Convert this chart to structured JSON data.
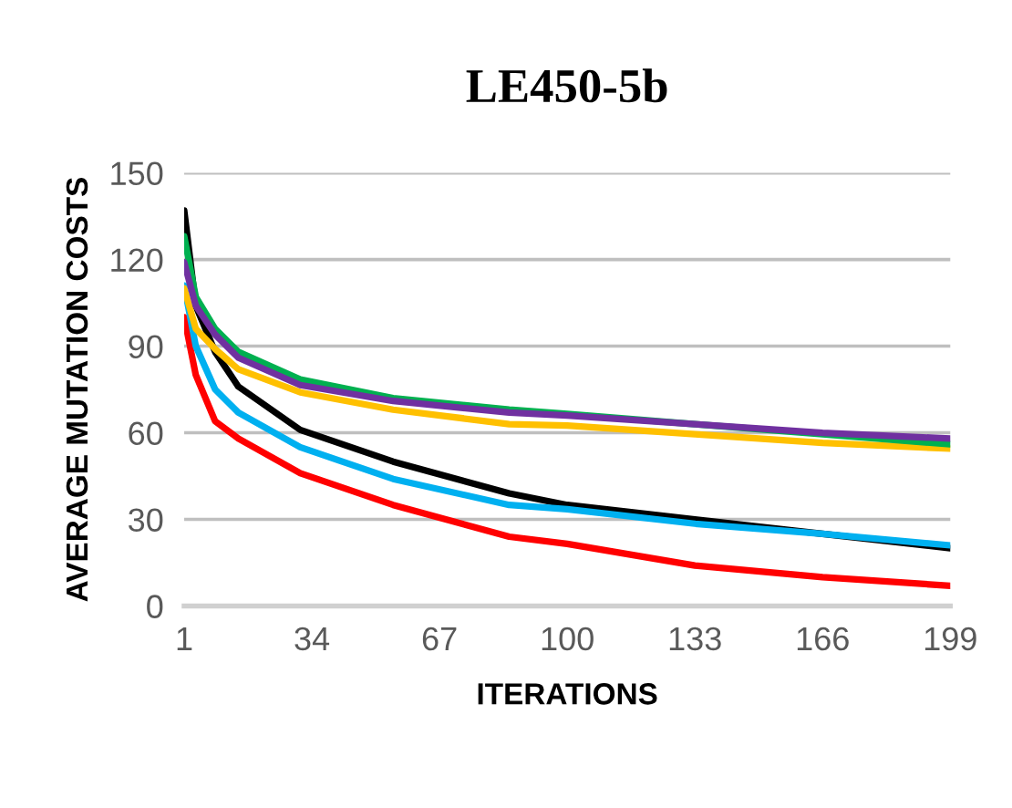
{
  "chart_data": {
    "type": "line",
    "title": "LE450-5b",
    "xlabel": "ITERATIONS",
    "ylabel": "AVERAGE MUTATION COSTS",
    "x": [
      1,
      4,
      9,
      15,
      31,
      55,
      85,
      100,
      133,
      166,
      199
    ],
    "series": [
      {
        "color": "#000000",
        "values": [
          137,
          104,
          88,
          76,
          61,
          50,
          39,
          35,
          30,
          25,
          20
        ]
      },
      {
        "color": "#ff0000",
        "values": [
          100,
          80,
          64,
          58,
          46,
          35,
          24,
          21.5,
          14,
          10,
          7
        ]
      },
      {
        "color": "#00b0f0",
        "values": [
          111,
          90,
          75,
          67,
          55,
          44,
          35,
          33.5,
          28.5,
          25,
          21
        ]
      },
      {
        "color": "#ffc000",
        "values": [
          110,
          96,
          89,
          82,
          74,
          68,
          63,
          62.5,
          59.5,
          56.5,
          54.5
        ]
      },
      {
        "color": "#00b050",
        "values": [
          128,
          107,
          96,
          88,
          78.5,
          72,
          68,
          66.5,
          63,
          59.5,
          56
        ]
      },
      {
        "color": "#7030a0",
        "values": [
          119,
          104,
          94,
          86,
          76.5,
          71,
          67,
          66,
          63,
          60,
          58
        ]
      }
    ],
    "xlim": [
      1,
      199
    ],
    "xticks": [
      1,
      34,
      67,
      100,
      133,
      166,
      199
    ],
    "ylim": [
      0,
      150
    ],
    "yticks": [
      0,
      30,
      60,
      90,
      120,
      150
    ],
    "grid": "y",
    "legend": false,
    "marker": "none",
    "line_style": "solid"
  }
}
